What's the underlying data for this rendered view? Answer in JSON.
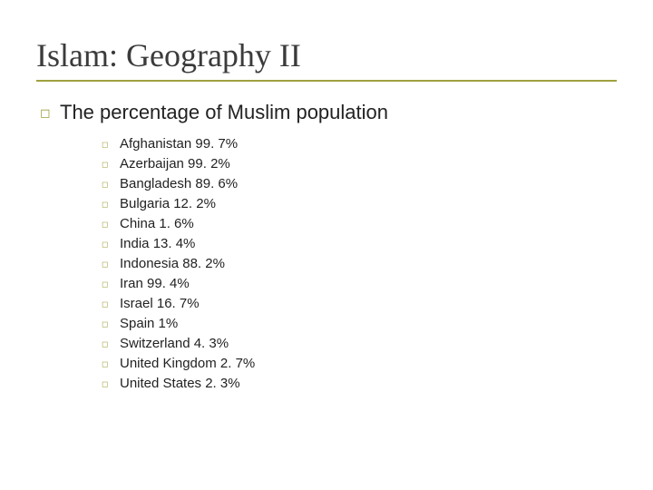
{
  "colors": {
    "accent": "#a0a040",
    "text": "#222222",
    "title": "#3b3b3b",
    "background": "#ffffff"
  },
  "typography": {
    "title_font": "Georgia",
    "body_font": "Verdana",
    "title_size_pt": 36,
    "lvl1_size_pt": 22,
    "lvl2_size_pt": 15
  },
  "bullet_glyph": "◻",
  "title": "Islam: Geography II",
  "main_point": "The percentage of Muslim population",
  "items": [
    {
      "label": "Afghanistan 99. 7%"
    },
    {
      "label": "Azerbaijan 99. 2%"
    },
    {
      "label": "Bangladesh 89. 6%"
    },
    {
      "label": "Bulgaria 12. 2%"
    },
    {
      "label": "China 1. 6%"
    },
    {
      "label": "India 13. 4%"
    },
    {
      "label": "Indonesia 88. 2%"
    },
    {
      "label": "Iran 99. 4%"
    },
    {
      "label": "Israel 16. 7%"
    },
    {
      "label": "Spain 1%"
    },
    {
      "label": "Switzerland 4. 3%"
    },
    {
      "label": "United Kingdom 2. 7%"
    },
    {
      "label": "United States 2. 3%"
    }
  ]
}
